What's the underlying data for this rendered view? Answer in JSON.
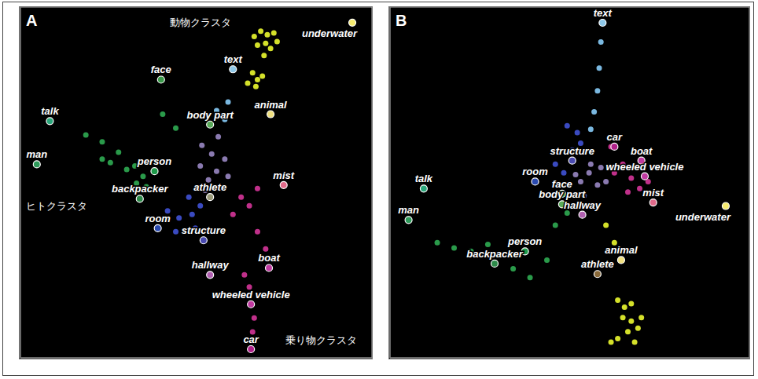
{
  "chart_data": [
    {
      "type": "scatter",
      "title": "A",
      "xlim": [
        -1.15,
        1.0
      ],
      "ylim": [
        -1.03,
        1.0
      ],
      "xticks": [
        0
      ],
      "yticks": [
        0
      ],
      "grid": true,
      "tick_labels": false,
      "series": [
        {
          "name": "underwater",
          "color": "#f5ea6e",
          "x": 0.88,
          "y": 0.91
        },
        {
          "name": "text",
          "color": "#8ec8e8",
          "x": 0.15,
          "y": 0.64
        },
        {
          "name": "face",
          "color": "#3a9a4a",
          "x": -0.29,
          "y": 0.58
        },
        {
          "name": "body part",
          "color": "#5aaa5a",
          "x": 0.01,
          "y": 0.32
        },
        {
          "name": "animal",
          "color": "#f0e080",
          "x": 0.38,
          "y": 0.38
        },
        {
          "name": "talk",
          "color": "#2aa67a",
          "x": -0.97,
          "y": 0.34
        },
        {
          "name": "man",
          "color": "#2e9a5a",
          "x": -1.05,
          "y": 0.09
        },
        {
          "name": "person",
          "color": "#1f9a4a",
          "x": -0.33,
          "y": 0.05
        },
        {
          "name": "athlete",
          "color": "#9a9a7a",
          "x": 0.01,
          "y": -0.1
        },
        {
          "name": "backpacker",
          "color": "#2e8a4a",
          "x": -0.42,
          "y": -0.11
        },
        {
          "name": "mist",
          "color": "#e06a8a",
          "x": 0.46,
          "y": -0.03
        },
        {
          "name": "room",
          "color": "#2a4ab0",
          "x": -0.31,
          "y": -0.28
        },
        {
          "name": "structure",
          "color": "#4a4ab0",
          "x": -0.03,
          "y": -0.35
        },
        {
          "name": "hallway",
          "color": "#b060b0",
          "x": 0.01,
          "y": -0.55
        },
        {
          "name": "boat",
          "color": "#c03aa0",
          "x": 0.37,
          "y": -0.51
        },
        {
          "name": "wheeled vehicle",
          "color": "#c03aa0",
          "x": 0.26,
          "y": -0.72
        },
        {
          "name": "car",
          "color": "#b0208a",
          "x": 0.26,
          "y": -0.98
        }
      ],
      "groups": [
        {
          "color": "#d4e02a",
          "points": [
            [
              0.28,
              0.83
            ],
            [
              0.32,
              0.86
            ],
            [
              0.36,
              0.84
            ],
            [
              0.4,
              0.85
            ],
            [
              0.3,
              0.78
            ],
            [
              0.35,
              0.79
            ],
            [
              0.38,
              0.76
            ],
            [
              0.27,
              0.62
            ],
            [
              0.3,
              0.58
            ],
            [
              0.33,
              0.6
            ],
            [
              0.29,
              0.54
            ],
            [
              0.24,
              0.56
            ],
            [
              0.42,
              0.8
            ],
            [
              0.34,
              0.72
            ]
          ]
        },
        {
          "color": "#2a9a4a",
          "points": [
            [
              -0.65,
              0.12
            ],
            [
              -0.6,
              0.1
            ],
            [
              -0.5,
              0.06
            ],
            [
              -0.45,
              0.08
            ],
            [
              -0.4,
              0.02
            ],
            [
              -0.38,
              -0.04
            ],
            [
              -0.44,
              -0.02
            ],
            [
              -0.75,
              0.26
            ],
            [
              -0.65,
              0.22
            ],
            [
              -0.55,
              0.16
            ],
            [
              -0.28,
              0.38
            ],
            [
              -0.2,
              0.3
            ]
          ]
        },
        {
          "color": "#3a4ac0",
          "points": [
            [
              -0.25,
              -0.18
            ],
            [
              -0.18,
              -0.22
            ],
            [
              -0.1,
              -0.2
            ],
            [
              -0.2,
              -0.3
            ],
            [
              -0.08,
              -0.28
            ],
            [
              -0.05,
              -0.15
            ],
            [
              -0.12,
              -0.1
            ]
          ]
        },
        {
          "color": "#8a7ab0",
          "points": [
            [
              0.0,
              0.0
            ],
            [
              0.05,
              0.05
            ],
            [
              -0.05,
              0.08
            ],
            [
              0.08,
              -0.05
            ],
            [
              0.02,
              0.15
            ],
            [
              0.1,
              0.12
            ],
            [
              -0.02,
              -0.06
            ],
            [
              0.12,
              0.02
            ],
            [
              0.06,
              0.25
            ],
            [
              -0.04,
              0.2
            ]
          ]
        },
        {
          "color": "#c0308a",
          "points": [
            [
              0.2,
              -0.1
            ],
            [
              0.25,
              -0.15
            ],
            [
              0.3,
              -0.3
            ],
            [
              0.35,
              -0.4
            ],
            [
              0.22,
              -0.55
            ],
            [
              0.25,
              -0.62
            ],
            [
              0.28,
              -0.8
            ],
            [
              0.27,
              -0.88
            ],
            [
              0.15,
              -0.2
            ],
            [
              0.3,
              -0.05
            ]
          ]
        },
        {
          "color": "#7ab8e0",
          "points": [
            [
              0.1,
              0.35
            ],
            [
              0.05,
              0.4
            ],
            [
              0.12,
              0.45
            ]
          ]
        }
      ],
      "annotations": [
        {
          "text": "動物クラスタ",
          "x": -0.05,
          "y": 0.89
        },
        {
          "text": "ヒトクラスタ",
          "x": -0.93,
          "y": -0.17
        },
        {
          "text": "乗り物クラスタ",
          "x": 0.69,
          "y": -0.95
        }
      ]
    },
    {
      "type": "scatter",
      "title": "B",
      "xlim": [
        -1.13,
        1.0
      ],
      "ylim": [
        -1.01,
        1.0
      ],
      "xticks": [
        0
      ],
      "yticks": [
        0
      ],
      "grid": true,
      "tick_labels": false,
      "series": [
        {
          "name": "text",
          "color": "#8ec8e8",
          "x": 0.13,
          "y": 0.91
        },
        {
          "name": "structure",
          "color": "#4a4ab0",
          "x": -0.05,
          "y": 0.12
        },
        {
          "name": "room",
          "color": "#2a4ab0",
          "x": -0.27,
          "y": 0.0
        },
        {
          "name": "car",
          "color": "#b0208a",
          "x": 0.2,
          "y": 0.2
        },
        {
          "name": "boat",
          "color": "#c03aa0",
          "x": 0.36,
          "y": 0.12
        },
        {
          "name": "wheeled vehicle",
          "color": "#c03aa0",
          "x": 0.38,
          "y": 0.03
        },
        {
          "name": "talk",
          "color": "#2aa67a",
          "x": -0.93,
          "y": -0.04
        },
        {
          "name": "face",
          "color": "#3a9a4a",
          "x": -0.11,
          "y": -0.07
        },
        {
          "name": "body part",
          "color": "#5aaa5a",
          "x": -0.11,
          "y": -0.13
        },
        {
          "name": "hallway",
          "color": "#b060b0",
          "x": 0.01,
          "y": -0.19
        },
        {
          "name": "mist",
          "color": "#e06a8a",
          "x": 0.43,
          "y": -0.12
        },
        {
          "name": "underwater",
          "color": "#f5ea6e",
          "x": 0.86,
          "y": -0.14
        },
        {
          "name": "man",
          "color": "#2e9a5a",
          "x": -1.02,
          "y": -0.22
        },
        {
          "name": "person",
          "color": "#1f9a4a",
          "x": -0.33,
          "y": -0.4
        },
        {
          "name": "backpacker",
          "color": "#2e8a4a",
          "x": -0.51,
          "y": -0.47
        },
        {
          "name": "athlete",
          "color": "#8a6a3a",
          "x": 0.1,
          "y": -0.53
        },
        {
          "name": "animal",
          "color": "#f0e080",
          "x": 0.24,
          "y": -0.45
        }
      ],
      "groups": [
        {
          "color": "#d4e02a",
          "points": [
            [
              0.22,
              -0.68
            ],
            [
              0.26,
              -0.72
            ],
            [
              0.3,
              -0.7
            ],
            [
              0.25,
              -0.78
            ],
            [
              0.3,
              -0.8
            ],
            [
              0.34,
              -0.84
            ],
            [
              0.28,
              -0.86
            ],
            [
              0.22,
              -0.9
            ],
            [
              0.18,
              -0.92
            ],
            [
              0.32,
              -0.92
            ],
            [
              0.36,
              -0.78
            ],
            [
              0.15,
              -0.25
            ],
            [
              0.2,
              -0.35
            ]
          ]
        },
        {
          "color": "#2a9a4a",
          "points": [
            [
              -0.85,
              -0.35
            ],
            [
              -0.75,
              -0.38
            ],
            [
              -0.65,
              -0.4
            ],
            [
              -0.55,
              -0.36
            ],
            [
              -0.45,
              -0.42
            ],
            [
              -0.4,
              -0.5
            ],
            [
              -0.3,
              -0.55
            ],
            [
              -0.2,
              -0.45
            ],
            [
              -0.15,
              -0.25
            ],
            [
              -0.08,
              -0.18
            ]
          ]
        },
        {
          "color": "#7ab8e0",
          "points": [
            [
              0.12,
              0.8
            ],
            [
              0.11,
              0.65
            ],
            [
              0.1,
              0.52
            ],
            [
              0.08,
              0.4
            ],
            [
              0.06,
              0.3
            ]
          ]
        },
        {
          "color": "#3a4ac0",
          "points": [
            [
              -0.15,
              0.1
            ],
            [
              -0.1,
              0.05
            ],
            [
              -0.05,
              0.18
            ],
            [
              -0.02,
              0.28
            ],
            [
              -0.08,
              0.32
            ],
            [
              0.0,
              0.22
            ]
          ]
        },
        {
          "color": "#8a7ab0",
          "points": [
            [
              0.0,
              0.0
            ],
            [
              0.05,
              0.05
            ],
            [
              0.1,
              -0.02
            ],
            [
              0.06,
              0.1
            ],
            [
              -0.03,
              0.04
            ],
            [
              0.12,
              0.08
            ],
            [
              0.15,
              0.0
            ],
            [
              0.02,
              -0.08
            ]
          ]
        },
        {
          "color": "#c0308a",
          "points": [
            [
              0.2,
              0.05
            ],
            [
              0.25,
              0.1
            ],
            [
              0.3,
              0.02
            ],
            [
              0.28,
              -0.06
            ],
            [
              0.35,
              -0.04
            ],
            [
              0.18,
              0.2
            ],
            [
              0.22,
              0.25
            ],
            [
              0.4,
              0.0
            ]
          ]
        }
      ],
      "annotations": []
    }
  ]
}
